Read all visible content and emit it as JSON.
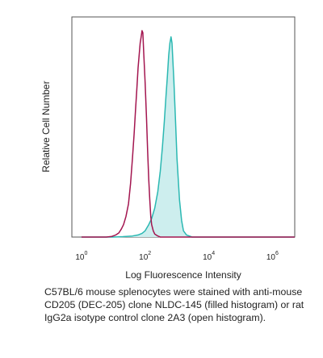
{
  "chart_data": {
    "type": "histogram-overlay",
    "title": "",
    "xlabel": "Log Fluorescence Intensity",
    "ylabel": "Relative Cell Number",
    "x_scale": "log",
    "xlim": [
      0.5,
      5000000
    ],
    "ylim": [
      0,
      1
    ],
    "x_ticks": [
      {
        "value": 1,
        "base": "10",
        "exp": "0"
      },
      {
        "value": 100,
        "base": "10",
        "exp": "2"
      },
      {
        "value": 10000,
        "base": "10",
        "exp": "4"
      },
      {
        "value": 1000000,
        "base": "10",
        "exp": "6"
      }
    ],
    "grid": false,
    "legend": "none",
    "series": [
      {
        "key": "cd205",
        "style": "filled",
        "stroke": "#2bb8b2",
        "fill": "#cdeeee",
        "x": [
          1,
          3,
          10,
          20,
          40,
          60,
          80,
          100,
          130,
          160,
          200,
          250,
          300,
          350,
          400,
          450,
          500,
          550,
          600,
          650,
          700,
          800,
          900,
          1000,
          1200,
          1400,
          1600,
          2000,
          3000,
          5000,
          10000,
          100000,
          1000000,
          5000000
        ],
        "y": [
          0,
          0,
          0,
          0.002,
          0.005,
          0.01,
          0.018,
          0.03,
          0.06,
          0.09,
          0.14,
          0.22,
          0.32,
          0.44,
          0.56,
          0.68,
          0.78,
          0.88,
          0.94,
          0.97,
          0.94,
          0.76,
          0.56,
          0.38,
          0.18,
          0.08,
          0.03,
          0.01,
          0,
          0,
          0,
          0,
          0,
          0
        ]
      },
      {
        "key": "isotype",
        "style": "open",
        "stroke": "#a3154f",
        "fill": "none",
        "x": [
          1,
          3,
          6,
          9,
          12,
          15,
          18,
          21,
          25,
          30,
          35,
          40,
          45,
          50,
          55,
          60,
          65,
          70,
          75,
          80,
          85,
          90,
          100,
          110,
          120,
          130,
          140,
          150,
          160,
          180,
          200,
          250,
          300,
          500,
          1000,
          10000,
          5000000
        ],
        "y": [
          0,
          0,
          0,
          0.003,
          0.01,
          0.02,
          0.04,
          0.06,
          0.1,
          0.16,
          0.26,
          0.38,
          0.5,
          0.62,
          0.72,
          0.82,
          0.88,
          0.94,
          0.97,
          1.0,
          0.99,
          0.9,
          0.75,
          0.58,
          0.42,
          0.28,
          0.18,
          0.1,
          0.06,
          0.03,
          0.015,
          0.005,
          0,
          0,
          0,
          0,
          0
        ]
      }
    ],
    "caption": "C57BL/6 mouse splenocytes were stained with anti-mouse CD205 (DEC-205) clone NLDC-145 (filled histogram) or rat IgG2a isotype control clone 2A3 (open histogram)."
  },
  "colors": {
    "axis": "#555555",
    "text": "#222222"
  }
}
